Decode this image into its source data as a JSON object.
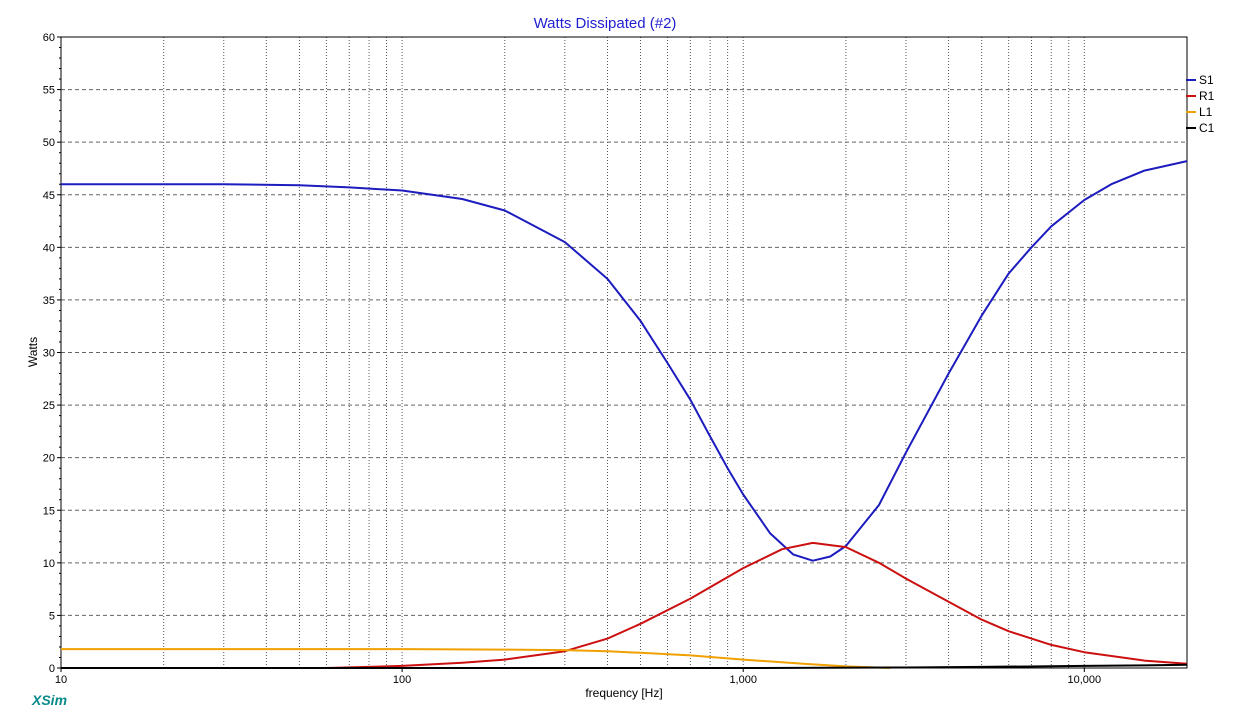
{
  "app": {
    "brand": "XSim"
  },
  "chart_data": {
    "type": "line",
    "title": "Watts Dissipated (#2)",
    "xlabel": "frequency [Hz]",
    "ylabel": "Watts",
    "x_scale": "log",
    "xlim": [
      10,
      20000
    ],
    "ylim": [
      0,
      60
    ],
    "x_tick_labels": [
      {
        "value": 10,
        "label": "10"
      },
      {
        "value": 100,
        "label": "100"
      },
      {
        "value": 1000,
        "label": "1,000"
      },
      {
        "value": 10000,
        "label": "10,000"
      }
    ],
    "y_ticks": [
      0,
      5,
      10,
      15,
      20,
      25,
      30,
      35,
      40,
      45,
      50,
      55,
      60
    ],
    "grid": true,
    "legend_position": "right",
    "series": [
      {
        "name": "S1",
        "color": "#1c1cbf",
        "points": [
          [
            10,
            46.0
          ],
          [
            20,
            46.0
          ],
          [
            30,
            46.0
          ],
          [
            50,
            45.9
          ],
          [
            70,
            45.7
          ],
          [
            100,
            45.4
          ],
          [
            150,
            44.6
          ],
          [
            200,
            43.5
          ],
          [
            300,
            40.5
          ],
          [
            400,
            37.0
          ],
          [
            500,
            33.0
          ],
          [
            600,
            29.0
          ],
          [
            700,
            25.5
          ],
          [
            800,
            22.0
          ],
          [
            900,
            19.0
          ],
          [
            1000,
            16.5
          ],
          [
            1200,
            12.8
          ],
          [
            1400,
            10.8
          ],
          [
            1600,
            10.2
          ],
          [
            1800,
            10.6
          ],
          [
            2000,
            11.6
          ],
          [
            2500,
            15.5
          ],
          [
            3000,
            20.5
          ],
          [
            4000,
            28.0
          ],
          [
            5000,
            33.5
          ],
          [
            6000,
            37.5
          ],
          [
            7000,
            40.0
          ],
          [
            8000,
            42.0
          ],
          [
            10000,
            44.5
          ],
          [
            12000,
            46.0
          ],
          [
            15000,
            47.3
          ],
          [
            20000,
            48.2
          ]
        ]
      },
      {
        "name": "R1",
        "color": "#cc1010",
        "points": [
          [
            60,
            0.0
          ],
          [
            100,
            0.2
          ],
          [
            150,
            0.5
          ],
          [
            200,
            0.8
          ],
          [
            300,
            1.6
          ],
          [
            400,
            2.8
          ],
          [
            500,
            4.2
          ],
          [
            700,
            6.6
          ],
          [
            1000,
            9.5
          ],
          [
            1300,
            11.3
          ],
          [
            1600,
            11.9
          ],
          [
            2000,
            11.5
          ],
          [
            2500,
            10.0
          ],
          [
            3000,
            8.5
          ],
          [
            4000,
            6.3
          ],
          [
            5000,
            4.6
          ],
          [
            6000,
            3.5
          ],
          [
            8000,
            2.2
          ],
          [
            10000,
            1.5
          ],
          [
            15000,
            0.7
          ],
          [
            20000,
            0.4
          ]
        ]
      },
      {
        "name": "L1",
        "color": "#f0a000",
        "points": [
          [
            10,
            1.8
          ],
          [
            50,
            1.8
          ],
          [
            100,
            1.8
          ],
          [
            200,
            1.75
          ],
          [
            300,
            1.7
          ],
          [
            400,
            1.6
          ],
          [
            500,
            1.45
          ],
          [
            700,
            1.2
          ],
          [
            1000,
            0.8
          ],
          [
            1500,
            0.4
          ],
          [
            2000,
            0.15
          ],
          [
            2700,
            0.0
          ]
        ]
      },
      {
        "name": "C1",
        "color": "#000000",
        "points": [
          [
            10,
            0.0
          ],
          [
            1000,
            0.0
          ],
          [
            3000,
            0.05
          ],
          [
            5000,
            0.1
          ],
          [
            10000,
            0.2
          ],
          [
            15000,
            0.25
          ],
          [
            20000,
            0.3
          ]
        ]
      }
    ]
  }
}
